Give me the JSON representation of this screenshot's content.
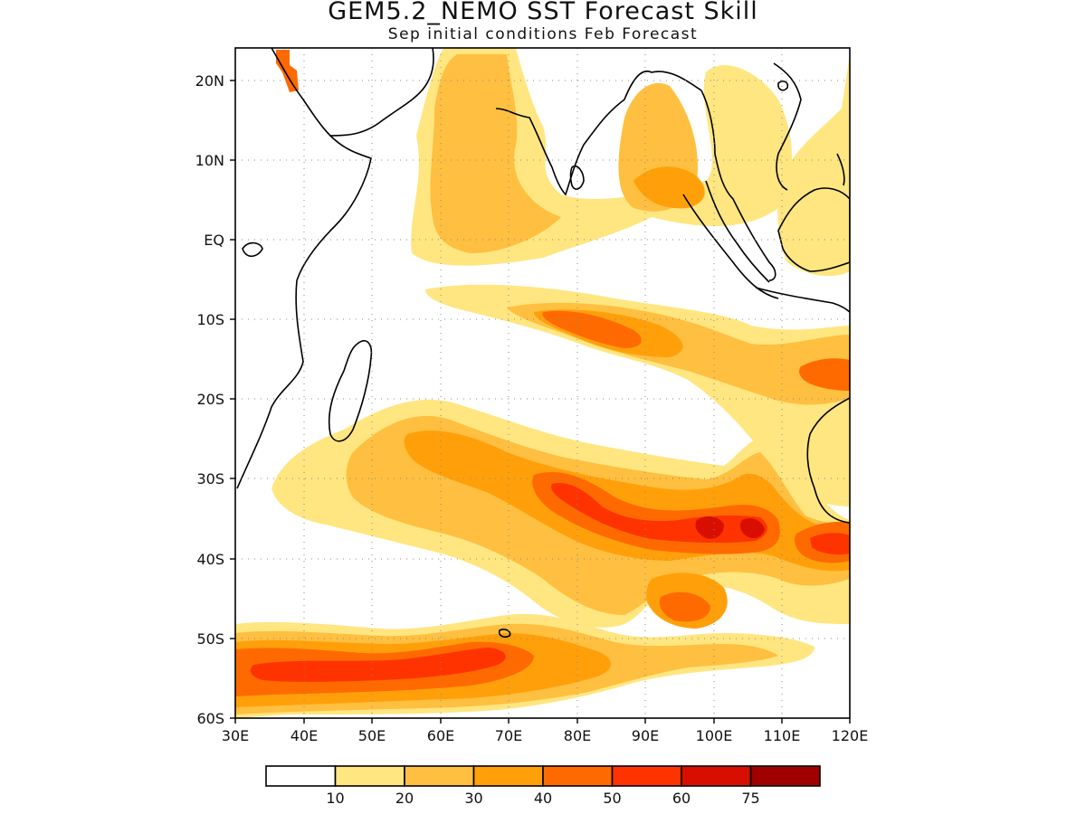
{
  "title": "GEM5.2_NEMO SST Forecast Skill",
  "subtitle": "Sep initial conditions  Feb Forecast",
  "map": {
    "lon_range": [
      30,
      120
    ],
    "lat_range": [
      -60,
      24
    ],
    "lon_ticks": [
      "30E",
      "40E",
      "50E",
      "60E",
      "70E",
      "80E",
      "90E",
      "100E",
      "110E",
      "120E"
    ],
    "lat_ticks": [
      "20N",
      "10N",
      "EQ",
      "10S",
      "20S",
      "30S",
      "40S",
      "50S",
      "60S"
    ],
    "grid": true
  },
  "colorbar": {
    "levels": [
      "10",
      "20",
      "30",
      "40",
      "50",
      "60",
      "75"
    ],
    "colors": [
      "#ffffff",
      "#ffe680",
      "#ffbf40",
      "#ffa00a",
      "#ff6a00",
      "#ff3300",
      "#d80f00",
      "#a00000"
    ]
  }
}
